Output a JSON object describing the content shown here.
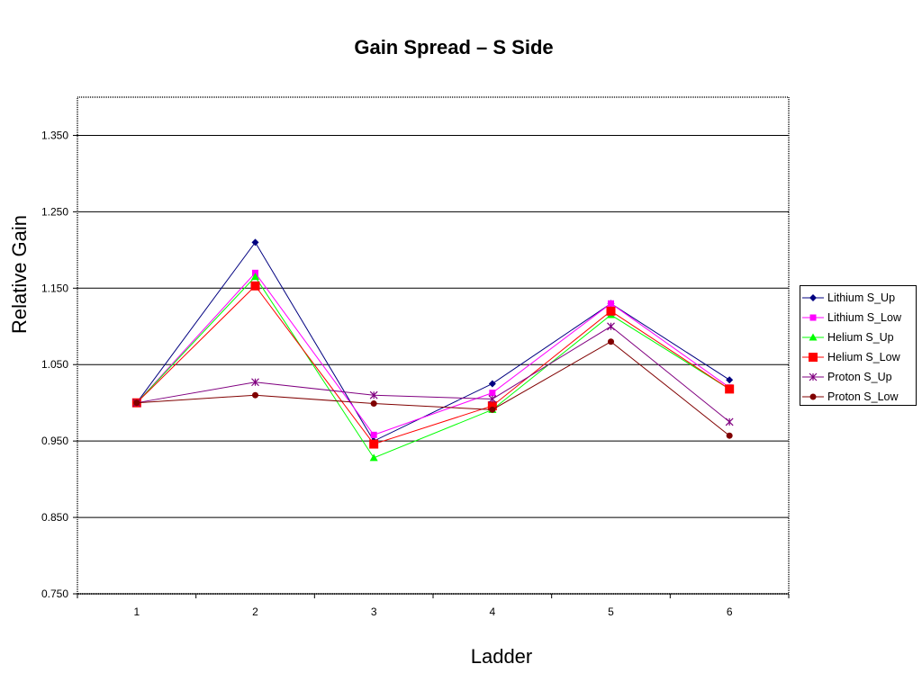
{
  "chart_data": {
    "type": "line",
    "title": "Gain Spread – S Side",
    "xlabel": "Ladder",
    "ylabel": "Relative Gain",
    "categories": [
      "1",
      "2",
      "3",
      "4",
      "5",
      "6"
    ],
    "ylim": [
      0.75,
      1.4
    ],
    "yticks": [
      "0.750",
      "0.850",
      "0.950",
      "1.050",
      "1.150",
      "1.250",
      "1.350"
    ],
    "grid": "horizontal",
    "legend_position": "right",
    "series": [
      {
        "name": "Lithium S_Up",
        "color": "#000080",
        "marker": "diamond",
        "values": [
          1.0,
          1.21,
          0.95,
          1.025,
          1.13,
          1.03
        ]
      },
      {
        "name": "Lithium S_Low",
        "color": "#ff00ff",
        "marker": "square",
        "values": [
          1.0,
          1.17,
          0.958,
          1.013,
          1.13,
          1.02
        ]
      },
      {
        "name": "Helium S_Up",
        "color": "#00ff00",
        "marker": "triangle",
        "values": [
          1.0,
          1.165,
          0.928,
          0.991,
          1.115,
          1.018
        ]
      },
      {
        "name": "Helium S_Low",
        "color": "#ff0000",
        "marker": "square-lg",
        "values": [
          1.0,
          1.153,
          0.946,
          0.996,
          1.12,
          1.018
        ]
      },
      {
        "name": "Proton S_Up",
        "color": "#800080",
        "marker": "star",
        "values": [
          1.0,
          1.027,
          1.01,
          1.005,
          1.1,
          0.975
        ]
      },
      {
        "name": "Proton S_Low",
        "color": "#800000",
        "marker": "circle",
        "values": [
          1.0,
          1.01,
          0.999,
          0.991,
          1.08,
          0.957
        ]
      }
    ]
  }
}
